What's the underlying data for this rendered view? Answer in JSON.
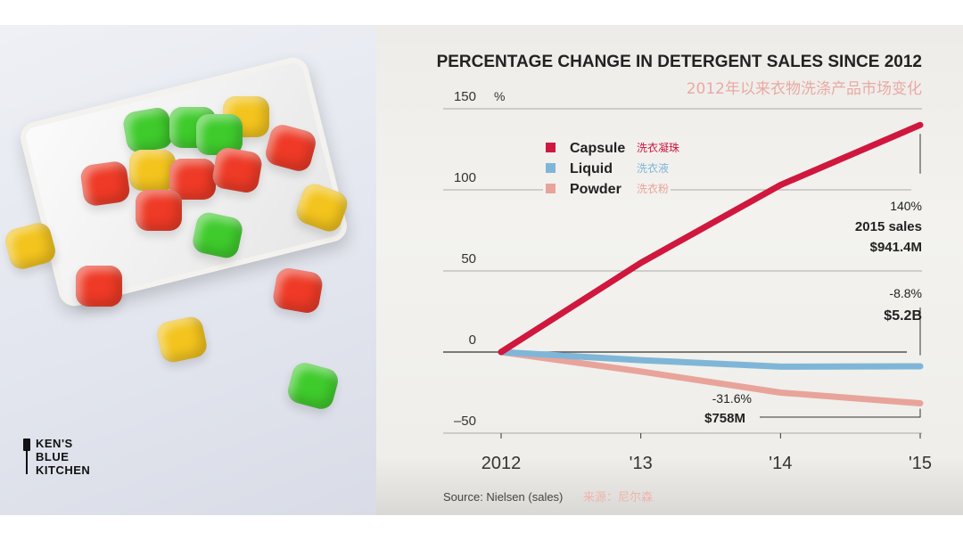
{
  "photo": {
    "logo_lines": [
      "KEN'S",
      "BLUE",
      "KITCHEN"
    ]
  },
  "chart_data": {
    "type": "line",
    "title": "PERCENTAGE CHANGE IN DETERGENT SALES SINCE 2012",
    "subtitle": "2012年以来衣物洗涤产品市场变化",
    "ylabel": "%",
    "ylim": [
      -50,
      150
    ],
    "yticks": [
      150,
      100,
      50,
      0,
      -50
    ],
    "x": [
      "2012",
      "'13",
      "'14",
      "'15"
    ],
    "grid": true,
    "legend_position": "top-left",
    "series": [
      {
        "name": "Capsule",
        "name_cn": "洗衣凝珠",
        "color": "#d0173e",
        "values": [
          0,
          55,
          103,
          140
        ]
      },
      {
        "name": "Liquid",
        "name_cn": "洗衣液",
        "color": "#7fb6d8",
        "values": [
          0,
          -5,
          -9,
          -8.8
        ]
      },
      {
        "name": "Powder",
        "name_cn": "洗衣粉",
        "color": "#e8a49a",
        "values": [
          0,
          -12,
          -25,
          -31.6
        ]
      }
    ],
    "annotations": [
      {
        "series": "Capsule",
        "lines": [
          "140%",
          "2015 sales",
          "$941.4M"
        ]
      },
      {
        "series": "Liquid",
        "lines": [
          "-8.8%",
          "$5.2B"
        ]
      },
      {
        "series": "Powder",
        "lines": [
          "-31.6%",
          "$758M"
        ]
      }
    ],
    "source": "Source: Nielsen (sales)",
    "source_cn": "来源：尼尔森"
  }
}
